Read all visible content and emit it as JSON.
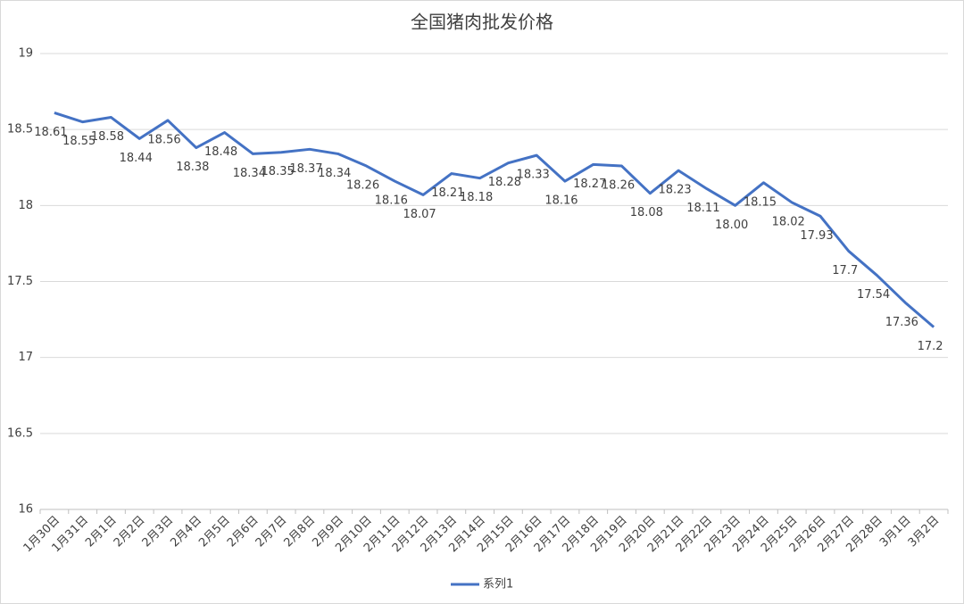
{
  "chart_data": {
    "type": "line",
    "title": "全国猪肉批发价格",
    "categories": [
      "1月30日",
      "1月31日",
      "2月1日",
      "2月2日",
      "2月3日",
      "2月4日",
      "2月5日",
      "2月6日",
      "2月7日",
      "2月8日",
      "2月9日",
      "2月10日",
      "2月11日",
      "2月12日",
      "2月13日",
      "2月14日",
      "2月15日",
      "2月16日",
      "2月17日",
      "2月18日",
      "2月19日",
      "2月20日",
      "2月21日",
      "2月22日",
      "2月23日",
      "2月24日",
      "2月25日",
      "2月26日",
      "2月27日",
      "2月28日",
      "3月1日",
      "3月2日"
    ],
    "series": [
      {
        "name": "系列1",
        "color": "#4472c4",
        "values": [
          18.61,
          18.55,
          18.58,
          18.44,
          18.56,
          18.38,
          18.48,
          18.34,
          18.35,
          18.37,
          18.34,
          18.26,
          18.16,
          18.07,
          18.21,
          18.18,
          18.28,
          18.33,
          18.16,
          18.27,
          18.26,
          18.08,
          18.23,
          18.11,
          18.0,
          18.15,
          18.02,
          17.93,
          17.7,
          17.54,
          17.36,
          17.2
        ],
        "value_labels": [
          "18.61",
          "18.55",
          "18.58",
          "18.44",
          "18.56",
          "18.38",
          "18.48",
          "18.34",
          "18.35",
          "18.37",
          "18.34",
          "18.26",
          "18.16",
          "18.07",
          "18.21",
          "18.18",
          "18.28",
          "18.33",
          "18.16",
          "18.27",
          "18.26",
          "18.08",
          "18.23",
          "18.11",
          "18.00",
          "18.15",
          "18.02",
          "17.93",
          "17.7",
          "17.54",
          "17.36",
          "17.2"
        ]
      }
    ],
    "ylim": [
      16,
      19
    ],
    "yticks": [
      16,
      16.5,
      17,
      17.5,
      18,
      18.5,
      19
    ],
    "grid": true,
    "legend": "bottom"
  }
}
